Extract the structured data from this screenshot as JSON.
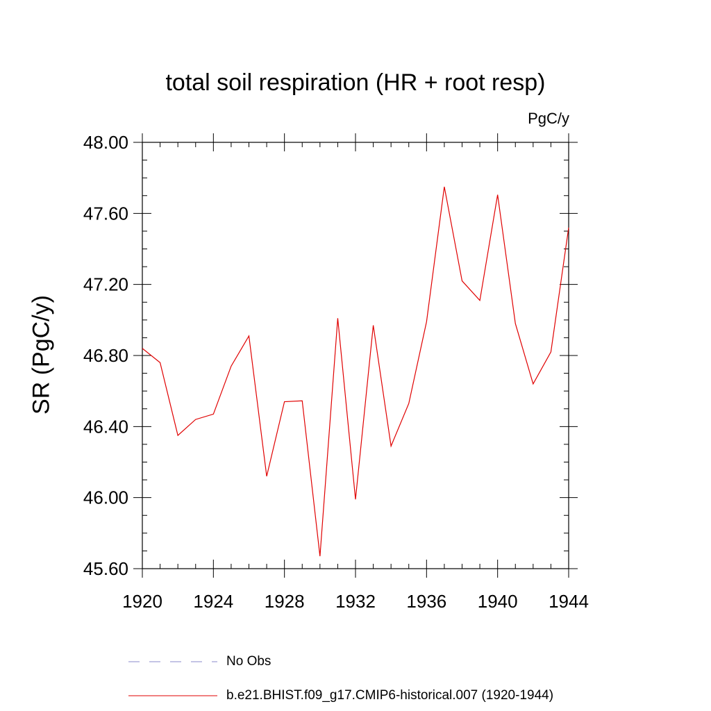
{
  "chart_data": {
    "type": "line",
    "title": "total soil respiration (HR + root resp)",
    "units": "PgC/y",
    "ylabel": "SR  (PgC/y)",
    "xlabel": "",
    "xlim": [
      1920,
      1944
    ],
    "ylim": [
      45.6,
      48.0
    ],
    "x_ticks": [
      1920,
      1924,
      1928,
      1932,
      1936,
      1940,
      1944
    ],
    "x_tick_labels": [
      "1920",
      "1924",
      "1928",
      "1932",
      "1936",
      "1940",
      "1944"
    ],
    "y_ticks": [
      45.6,
      46.0,
      46.4,
      46.8,
      47.2,
      47.6,
      48.0
    ],
    "y_tick_labels": [
      "45.60",
      "46.00",
      "46.40",
      "46.80",
      "47.20",
      "47.60",
      "48.00"
    ],
    "grid": false,
    "series": [
      {
        "name": "b.e21.BHIST.f09_g17.CMIP6-historical.007 (1920-1944)",
        "color": "#e00000",
        "style": "solid",
        "x": [
          1920,
          1921,
          1922,
          1923,
          1924,
          1925,
          1926,
          1927,
          1928,
          1929,
          1930,
          1931,
          1932,
          1933,
          1934,
          1935,
          1936,
          1937,
          1938,
          1939,
          1940,
          1941,
          1942,
          1943,
          1944
        ],
        "values": [
          46.84,
          46.76,
          46.35,
          46.44,
          46.47,
          46.74,
          46.91,
          46.12,
          46.54,
          46.545,
          45.67,
          47.01,
          45.99,
          46.97,
          46.29,
          46.53,
          46.99,
          47.75,
          47.22,
          47.11,
          47.705,
          46.98,
          46.64,
          46.82,
          47.52
        ]
      }
    ],
    "legend": [
      {
        "label": "No Obs",
        "color": "#8a8acb",
        "style": "dashed"
      },
      {
        "label": "b.e21.BHIST.f09_g17.CMIP6-historical.007 (1920-1944)",
        "color": "#e00000",
        "style": "solid"
      }
    ]
  }
}
